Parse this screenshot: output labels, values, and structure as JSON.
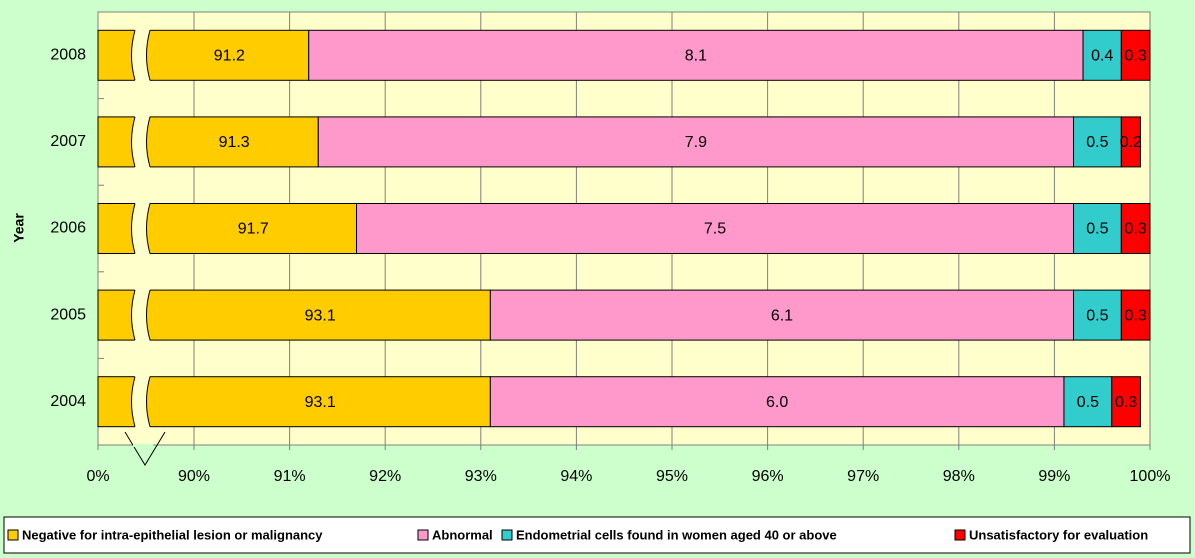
{
  "chart_data": {
    "type": "stacked_barh",
    "y_label": "Year",
    "categories": [
      "2008",
      "2007",
      "2006",
      "2005",
      "2004"
    ],
    "series": [
      {
        "name": "Negative for intra-epithelial lesion or malignancy",
        "color": "#FFCC00",
        "values": [
          91.2,
          91.3,
          91.7,
          93.1,
          93.1
        ]
      },
      {
        "name": "Abnormal",
        "color": "#FF99CC",
        "values": [
          8.1,
          7.9,
          7.5,
          6.1,
          6.0
        ],
        "value_labels": [
          "8.1",
          "7.9",
          "7.5",
          "6.1",
          "6.0"
        ]
      },
      {
        "name": "Endometrial cells found in women aged 40 or above",
        "color": "#33CCCC",
        "values": [
          0.4,
          0.5,
          0.5,
          0.5,
          0.5
        ]
      },
      {
        "name": "Unsatisfactory for evaluation",
        "color": "#FF0000",
        "values": [
          0.3,
          0.2,
          0.3,
          0.3,
          0.3
        ]
      }
    ],
    "xlim": [
      0,
      100
    ],
    "xbreak": [
      0,
      90
    ],
    "xticks": [
      {
        "value": 0,
        "label": "0%"
      },
      {
        "value": 90,
        "label": "90%"
      },
      {
        "value": 91,
        "label": "91%"
      },
      {
        "value": 92,
        "label": "92%"
      },
      {
        "value": 93,
        "label": "93%"
      },
      {
        "value": 94,
        "label": "94%"
      },
      {
        "value": 95,
        "label": "95%"
      },
      {
        "value": 96,
        "label": "96%"
      },
      {
        "value": 97,
        "label": "97%"
      },
      {
        "value": 98,
        "label": "98%"
      },
      {
        "value": 99,
        "label": "99%"
      },
      {
        "value": 100,
        "label": "100%"
      }
    ],
    "grid": true,
    "legend": "bottom"
  }
}
